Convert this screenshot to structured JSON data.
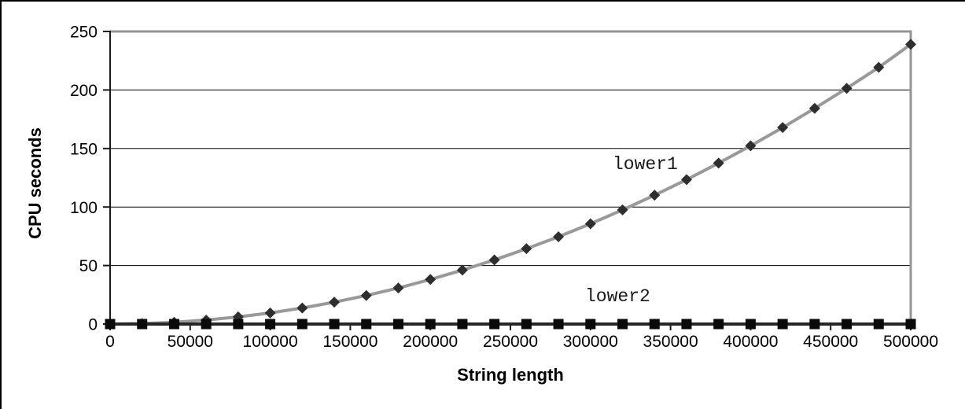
{
  "chart_data": {
    "type": "line",
    "title": "",
    "xlabel": "String length",
    "ylabel": "CPU seconds",
    "xlim": [
      0,
      500000
    ],
    "ylim": [
      0,
      250
    ],
    "x_tick_interval": 50000,
    "y_tick_interval": 50,
    "x_tick_labels": [
      "0",
      "50000",
      "100000",
      "150000",
      "200000",
      "250000",
      "300000",
      "350000",
      "400000",
      "450000",
      "500000"
    ],
    "y_tick_labels": [
      "0",
      "50",
      "100",
      "150",
      "200",
      "250"
    ],
    "grid": "horizontal",
    "legend_position": "inline-data-labels",
    "x": [
      0,
      20000,
      40000,
      60000,
      80000,
      100000,
      120000,
      140000,
      160000,
      180000,
      200000,
      220000,
      240000,
      260000,
      280000,
      300000,
      320000,
      340000,
      360000,
      380000,
      400000,
      420000,
      440000,
      460000,
      480000,
      500000
    ],
    "series": [
      {
        "name": "lower1",
        "marker": "diamond",
        "line_color": "#999999",
        "marker_color": "#2e2e2e",
        "values": [
          0,
          0.4,
          1.5,
          3.4,
          6.1,
          9.5,
          13.7,
          18.7,
          24.4,
          30.8,
          38.1,
          46.1,
          54.8,
          64.4,
          74.6,
          85.7,
          97.5,
          110.1,
          123.4,
          137.5,
          152.3,
          167.9,
          184.3,
          201.4,
          219.3,
          239.0
        ]
      },
      {
        "name": "lower2",
        "marker": "square",
        "line_color": "#262626",
        "marker_color": "#0a0a0a",
        "values": [
          0,
          0,
          0,
          0,
          0,
          0,
          0,
          0,
          0,
          0,
          0,
          0,
          0,
          0,
          0,
          0,
          0,
          0,
          0,
          0,
          0,
          0,
          0,
          0,
          0,
          0
        ]
      }
    ],
    "colors": {
      "plot_border": "#949494",
      "gridline": "#000000",
      "axis_line": "#1a1a1a",
      "tick_label": "#000000",
      "background": "#ffffff"
    }
  }
}
